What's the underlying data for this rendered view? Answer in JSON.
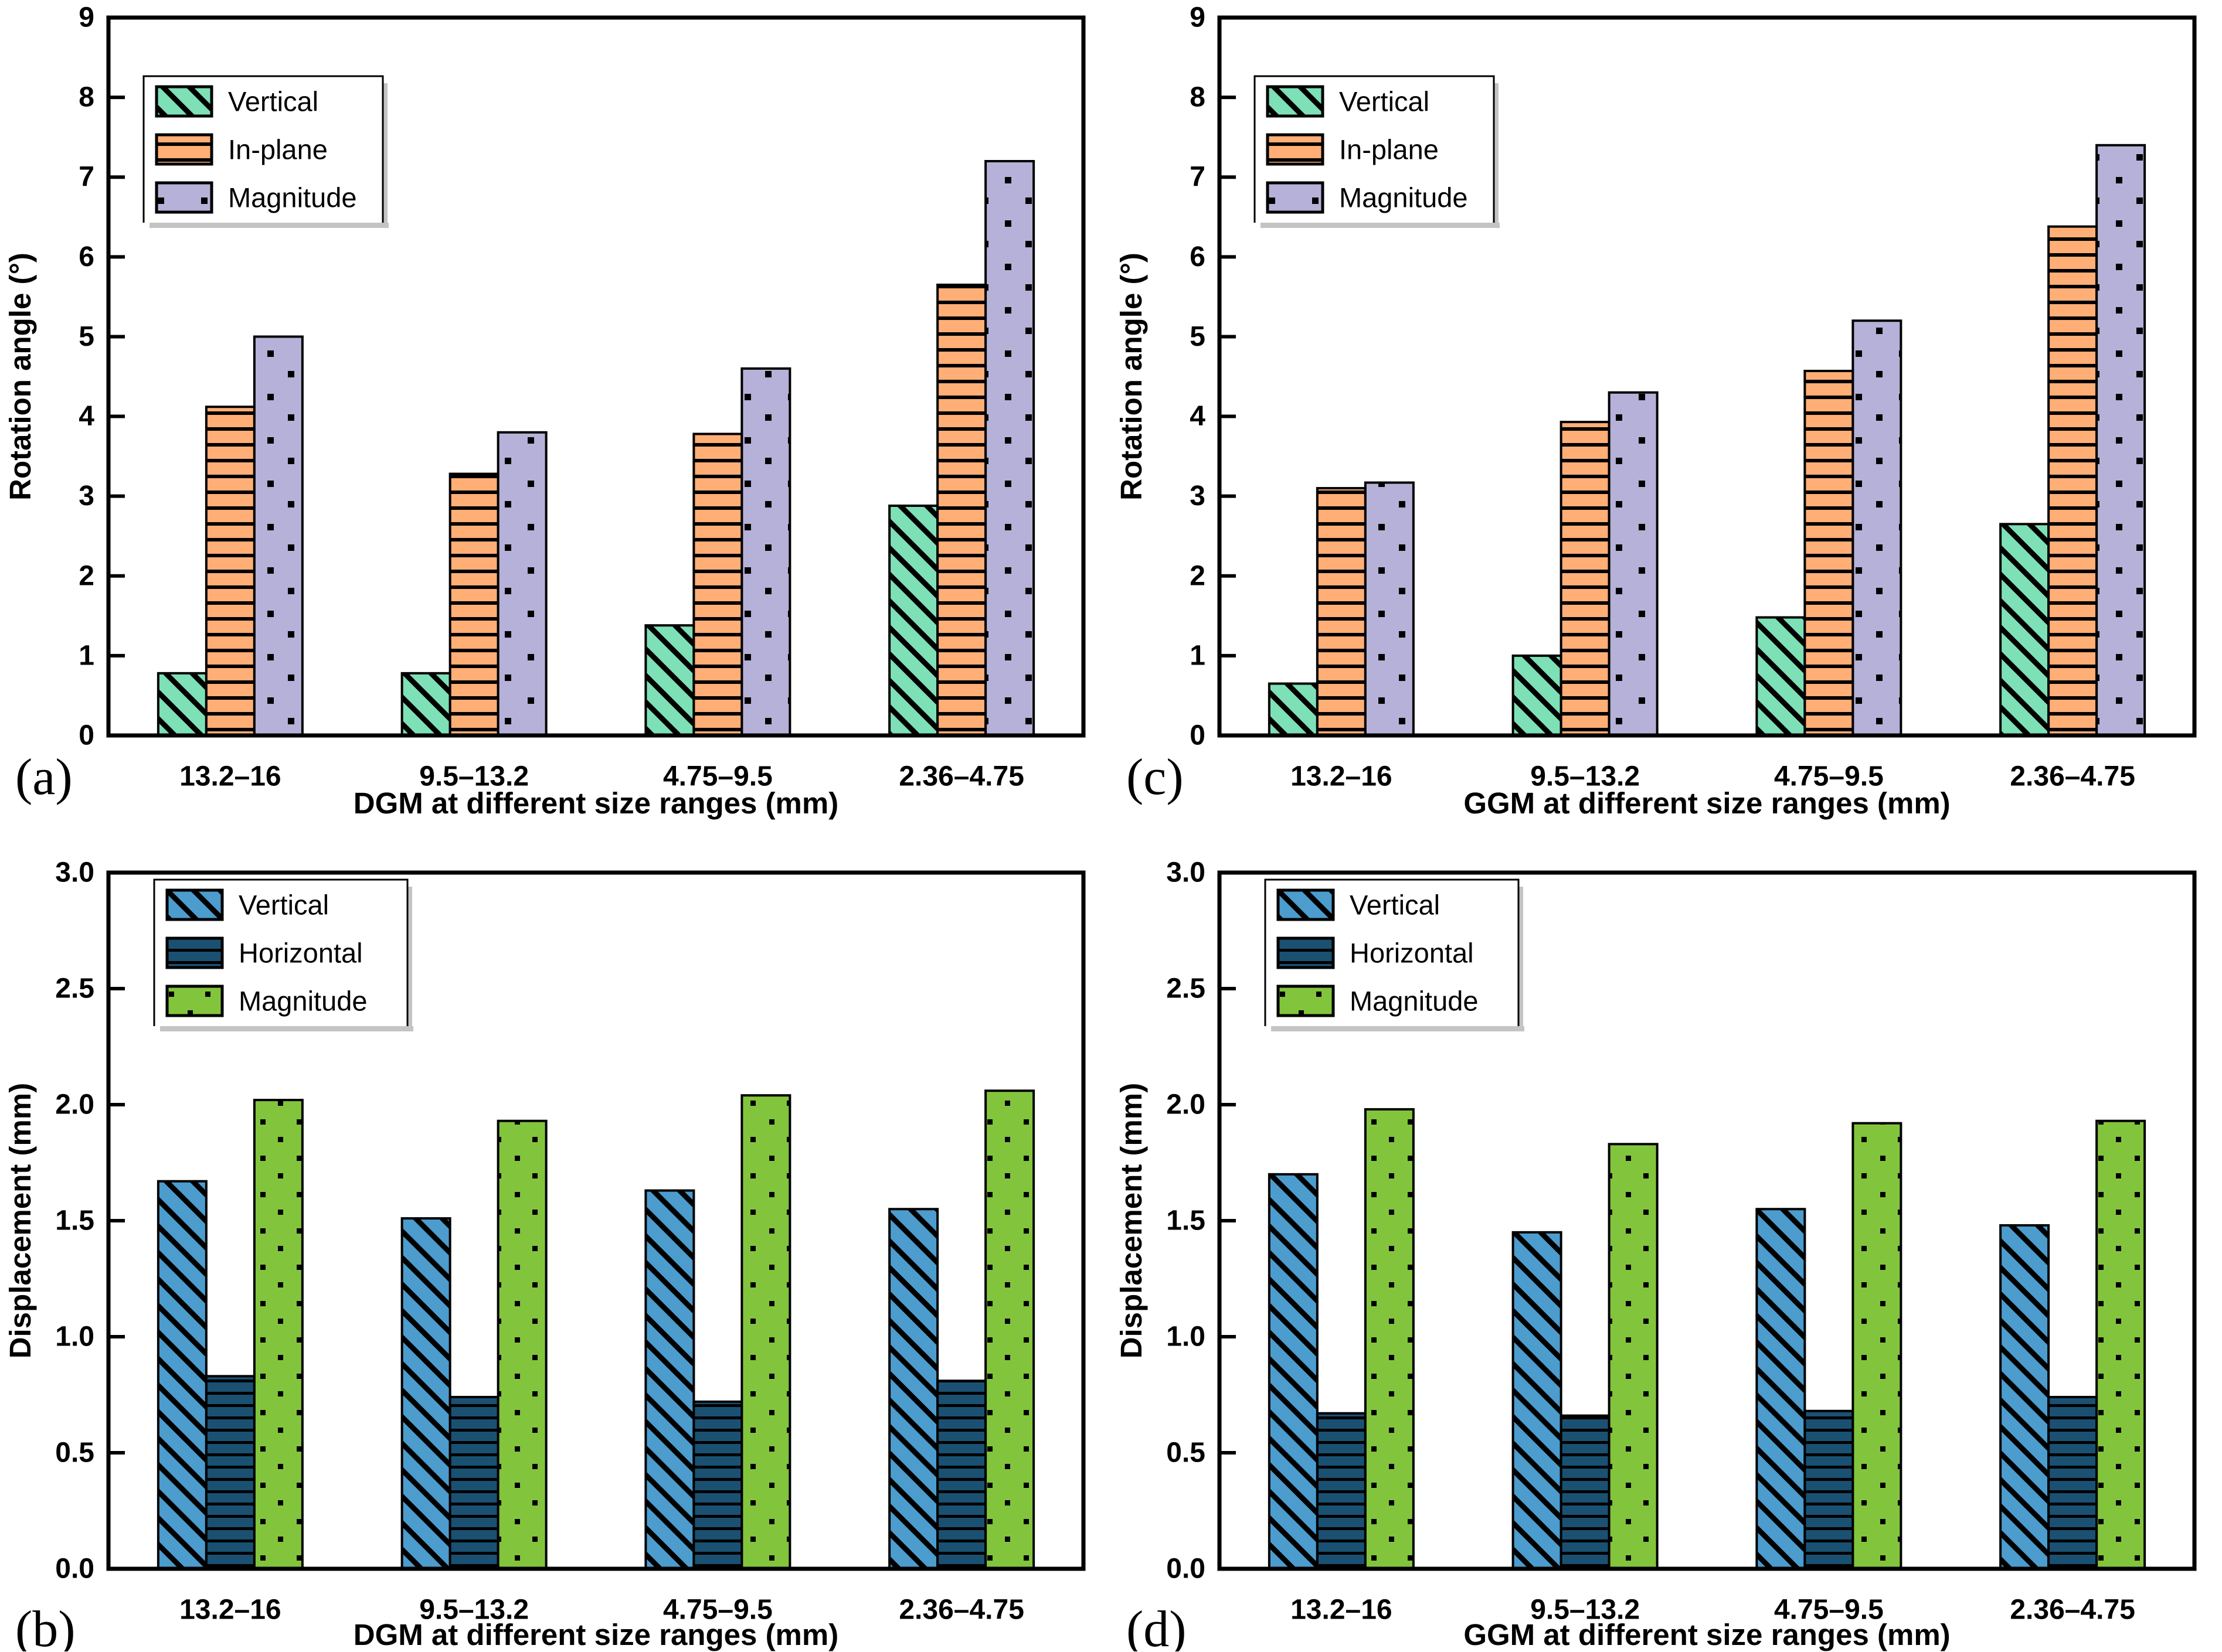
{
  "figure": {
    "description": "Four-panel bar chart figure comparing rotation angles and displacements of DGM and GGM at different aggregate size ranges",
    "panel_letters": [
      "(a)",
      "(c)",
      "(b)",
      "(d)"
    ]
  },
  "colors": {
    "mint_green": "#7EE0B6",
    "orange": "#FFAE76",
    "lavender": "#B6B1D8",
    "steel_blue": "#4C9CCE",
    "navy": "#1A5173",
    "yellow_green": "#82C53D",
    "bar_edge": "#000000",
    "axis": "#000000",
    "legend_shadow": "#C4C4C4",
    "background": "#FFFFFF"
  },
  "chart_data": [
    {
      "id": "a",
      "panel_label": "(a)",
      "type": "bar",
      "title": "",
      "xlabel": "DGM at different size ranges (mm)",
      "ylabel": "Rotation angle (°)",
      "categories": [
        "13.2–16",
        "9.5–13.2",
        "4.75–9.5",
        "2.36–4.75"
      ],
      "series": [
        {
          "name": "Vertical",
          "pattern": "diagonal",
          "color": "#7EE0B6",
          "values": [
            0.78,
            0.78,
            1.38,
            2.88
          ]
        },
        {
          "name": "In-plane",
          "pattern": "hlines",
          "color": "#FFAE76",
          "values": [
            4.12,
            3.28,
            3.78,
            5.65
          ]
        },
        {
          "name": "Magnitude",
          "pattern": "dots",
          "color": "#B6B1D8",
          "values": [
            5.0,
            3.8,
            4.6,
            7.2
          ]
        }
      ],
      "ylim": [
        0,
        9
      ],
      "ytick_step": 1,
      "ytick_decimals": 0,
      "grid": false,
      "legend_position": "top-left"
    },
    {
      "id": "c",
      "panel_label": "(c)",
      "type": "bar",
      "title": "",
      "xlabel": "GGM at different size ranges (mm)",
      "ylabel": "Rotation angle (°)",
      "categories": [
        "13.2–16",
        "9.5–13.2",
        "4.75–9.5",
        "2.36–4.75"
      ],
      "series": [
        {
          "name": "Vertical",
          "pattern": "diagonal",
          "color": "#7EE0B6",
          "values": [
            0.65,
            1.0,
            1.48,
            2.65
          ]
        },
        {
          "name": "In-plane",
          "pattern": "hlines",
          "color": "#FFAE76",
          "values": [
            3.1,
            3.93,
            4.57,
            6.38
          ]
        },
        {
          "name": "Magnitude",
          "pattern": "dots",
          "color": "#B6B1D8",
          "values": [
            3.17,
            4.3,
            5.2,
            7.4
          ]
        }
      ],
      "ylim": [
        0,
        9
      ],
      "ytick_step": 1,
      "ytick_decimals": 0,
      "grid": false,
      "legend_position": "top-left"
    },
    {
      "id": "b",
      "panel_label": "(b)",
      "type": "bar",
      "title": "",
      "xlabel": "DGM at different size ranges (mm)",
      "ylabel": "Displacement (mm)",
      "categories": [
        "13.2–16",
        "9.5–13.2",
        "4.75–9.5",
        "2.36–4.75"
      ],
      "series": [
        {
          "name": "Vertical",
          "pattern": "diagonal",
          "color": "#4C9CCE",
          "values": [
            1.67,
            1.51,
            1.63,
            1.55
          ]
        },
        {
          "name": "Horizontal",
          "pattern": "hlines",
          "color": "#1A5173",
          "values": [
            0.83,
            0.74,
            0.72,
            0.81
          ]
        },
        {
          "name": "Magnitude",
          "pattern": "dots",
          "color": "#82C53D",
          "values": [
            2.02,
            1.93,
            2.04,
            2.06
          ]
        }
      ],
      "ylim": [
        0,
        3.0
      ],
      "ytick_step": 0.5,
      "ytick_decimals": 1,
      "grid": false,
      "legend_position": "top-left"
    },
    {
      "id": "d",
      "panel_label": "(d)",
      "type": "bar",
      "title": "",
      "xlabel": "GGM at different size ranges (mm)",
      "ylabel": "Displacement (mm)",
      "categories": [
        "13.2–16",
        "9.5–13.2",
        "4.75–9.5",
        "2.36–4.75"
      ],
      "series": [
        {
          "name": "Vertical",
          "pattern": "diagonal",
          "color": "#4C9CCE",
          "values": [
            1.7,
            1.45,
            1.55,
            1.48
          ]
        },
        {
          "name": "Horizontal",
          "pattern": "hlines",
          "color": "#1A5173",
          "values": [
            0.67,
            0.66,
            0.68,
            0.74
          ]
        },
        {
          "name": "Magnitude",
          "pattern": "dots",
          "color": "#82C53D",
          "values": [
            1.98,
            1.83,
            1.92,
            1.93
          ]
        }
      ],
      "ylim": [
        0,
        3.0
      ],
      "ytick_step": 0.5,
      "ytick_decimals": 1,
      "grid": false,
      "legend_position": "top-left"
    }
  ]
}
